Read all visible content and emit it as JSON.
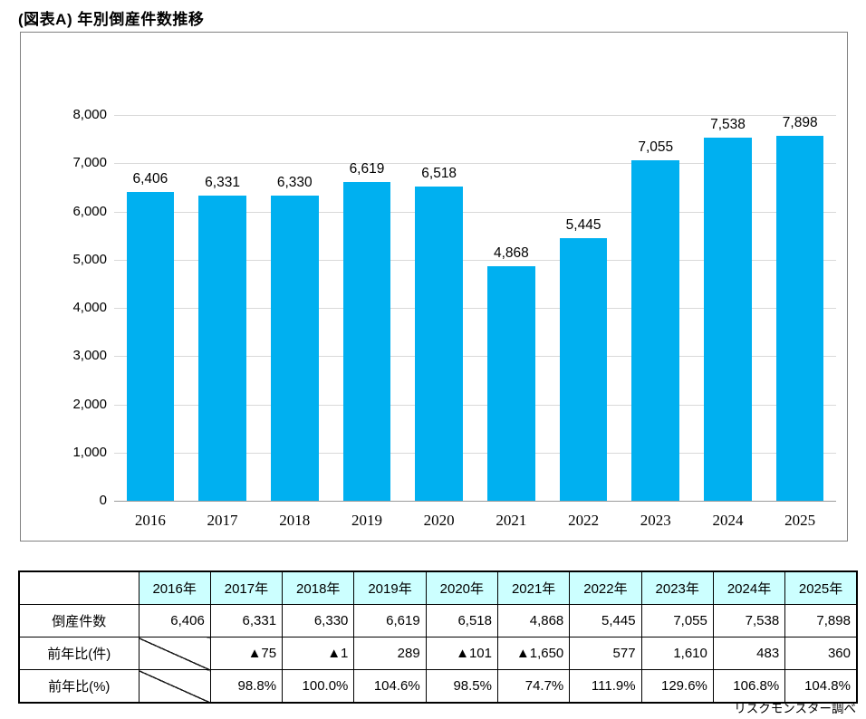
{
  "title": "(図表A) 年別倒産件数推移",
  "caption": "リスクモンスター調べ",
  "colors": {
    "bar": "#00B0F0",
    "gridline": "#D9D9D9",
    "axis_line": "#9B9B9B",
    "chart_border": "#808080",
    "table_header_bg": "#CCFFFF"
  },
  "chart_data": {
    "type": "bar",
    "title": "(図表A) 年別倒産件数推移",
    "categories": [
      "2016",
      "2017",
      "2018",
      "2019",
      "2020",
      "2021",
      "2022",
      "2023",
      "2024",
      "2025"
    ],
    "values": [
      6406,
      6331,
      6330,
      6619,
      6518,
      4868,
      5445,
      7055,
      7538,
      7898
    ],
    "value_labels": [
      "6,406",
      "6,331",
      "6,330",
      "6,619",
      "6,518",
      "4,868",
      "5,445",
      "7,055",
      "7,538",
      "7,898"
    ],
    "xlabel": "",
    "ylabel": "",
    "ylim": [
      0,
      8000
    ],
    "ytick_step": 1000,
    "ytick_labels": [
      "0",
      "1,000",
      "2,000",
      "3,000",
      "4,000",
      "5,000",
      "6,000",
      "7,000",
      "8,000"
    ],
    "grid": true,
    "legend_position": "none",
    "data_labels": true
  },
  "table": {
    "header": [
      "",
      "2016年",
      "2017年",
      "2018年",
      "2019年",
      "2020年",
      "2021年",
      "2022年",
      "2023年",
      "2024年",
      "2025年"
    ],
    "rows": [
      {
        "label": "倒産件数",
        "cells": [
          "6,406",
          "6,331",
          "6,330",
          "6,619",
          "6,518",
          "4,868",
          "5,445",
          "7,055",
          "7,538",
          "7,898"
        ]
      },
      {
        "label": "前年比(件)",
        "cells": [
          null,
          "▲75",
          "▲1",
          "289",
          "▲101",
          "▲1,650",
          "577",
          "1,610",
          "483",
          "360"
        ]
      },
      {
        "label": "前年比(%)",
        "cells": [
          null,
          "98.8%",
          "100.0%",
          "104.6%",
          "98.5%",
          "74.7%",
          "111.9%",
          "129.6%",
          "106.8%",
          "104.8%"
        ]
      }
    ]
  }
}
